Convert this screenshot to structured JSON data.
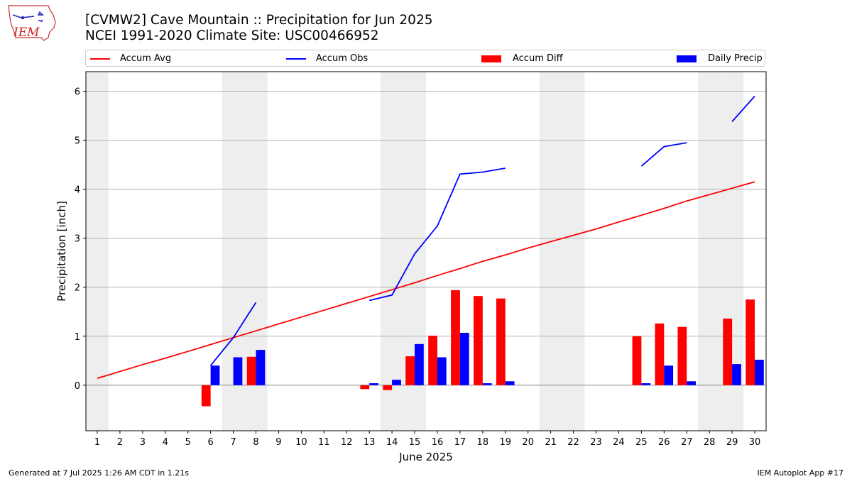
{
  "title_line1": "[CVMW2] Cave Mountain :: Precipitation for Jun 2025",
  "title_line2": "NCEI 1991-2020 Climate Site: USC00466952",
  "logo_text": "IEM",
  "colors": {
    "avg": "#ff0000",
    "obs": "#0000ff",
    "diff": "#ff0000",
    "daily": "#0000ff",
    "weekend": "#eeeeee",
    "grid": "#b0b0b0"
  },
  "legend": [
    {
      "label": "Accum Avg",
      "kind": "line",
      "color": "#ff0000"
    },
    {
      "label": "Accum Obs",
      "kind": "line",
      "color": "#0000ff"
    },
    {
      "label": "Accum Diff",
      "kind": "bar",
      "color": "#ff0000"
    },
    {
      "label": "Daily Precip",
      "kind": "bar",
      "color": "#0000ff"
    }
  ],
  "footer_left": "Generated at 7 Jul 2025 1:26 AM CDT in 1.21s",
  "footer_right": "IEM Autoplot App #17",
  "chart_data": {
    "type": "bar",
    "xlabel": "June 2025",
    "ylabel": "Precipitation [inch]",
    "xlim": [
      0.5,
      30.5
    ],
    "ylim": [
      -0.93,
      6.4
    ],
    "yticks": [
      0,
      1,
      2,
      3,
      4,
      5,
      6
    ],
    "x": [
      1,
      2,
      3,
      4,
      5,
      6,
      7,
      8,
      9,
      10,
      11,
      12,
      13,
      14,
      15,
      16,
      17,
      18,
      19,
      20,
      21,
      22,
      23,
      24,
      25,
      26,
      27,
      28,
      29,
      30
    ],
    "xtick_labels": [
      "1",
      "2",
      "3",
      "4",
      "5",
      "6",
      "7",
      "8",
      "9",
      "10",
      "11",
      "12",
      "13",
      "14",
      "15",
      "16",
      "17",
      "18",
      "19",
      "20",
      "21",
      "22",
      "23",
      "24",
      "25",
      "26",
      "27",
      "28",
      "29",
      "30"
    ],
    "shaded_days": [
      1,
      7,
      8,
      14,
      15,
      21,
      22,
      28,
      29
    ],
    "grid": "y",
    "legend_position": "top",
    "series": [
      {
        "name": "Accum Avg",
        "kind": "line",
        "values": [
          0.14,
          0.28,
          0.42,
          0.55,
          0.69,
          0.83,
          0.97,
          1.11,
          1.25,
          1.39,
          1.53,
          1.67,
          1.81,
          1.95,
          2.09,
          2.24,
          2.38,
          2.53,
          2.66,
          2.8,
          2.93,
          3.06,
          3.19,
          3.33,
          3.47,
          3.61,
          3.76,
          3.89,
          4.02,
          4.15
        ]
      },
      {
        "name": "Accum Obs",
        "kind": "line",
        "values": [
          null,
          null,
          null,
          null,
          null,
          0.4,
          0.97,
          1.69,
          null,
          null,
          null,
          null,
          1.73,
          1.84,
          2.68,
          3.25,
          4.31,
          4.35,
          4.43,
          null,
          null,
          null,
          null,
          null,
          4.47,
          4.87,
          4.95,
          null,
          5.38,
          5.9
        ]
      },
      {
        "name": "Accum Diff",
        "kind": "bar",
        "values": [
          null,
          null,
          null,
          null,
          null,
          -0.43,
          0.0,
          0.58,
          null,
          null,
          null,
          null,
          -0.08,
          -0.1,
          0.59,
          1.01,
          1.94,
          1.82,
          1.77,
          null,
          null,
          null,
          null,
          null,
          1.0,
          1.26,
          1.19,
          null,
          1.36,
          1.75
        ]
      },
      {
        "name": "Daily Precip",
        "kind": "bar",
        "values": [
          0,
          0,
          0,
          0,
          0,
          0.4,
          0.57,
          0.72,
          0,
          0,
          0,
          0,
          0.04,
          0.11,
          0.84,
          0.57,
          1.07,
          0.04,
          0.08,
          0,
          0,
          0,
          0,
          0,
          0.04,
          0.4,
          0.08,
          0,
          0.43,
          0.52
        ]
      }
    ]
  }
}
